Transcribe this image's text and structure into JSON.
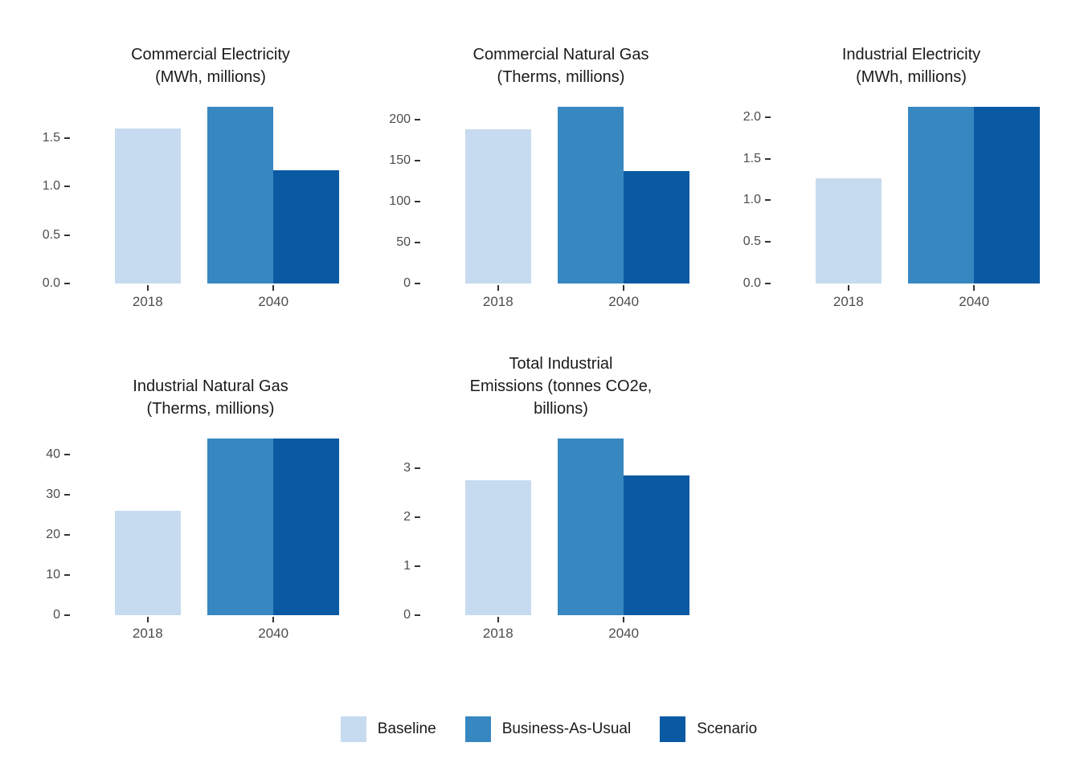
{
  "colors": {
    "baseline": "#c6dbef",
    "bau": "#3787c1",
    "scenario": "#0a5aa3",
    "axis_text": "#4d4d4d",
    "title_text": "#1a1a1a",
    "tick": "#333333"
  },
  "legend": {
    "items": [
      {
        "label": "Baseline",
        "color_key": "baseline"
      },
      {
        "label": "Business-As-Usual",
        "color_key": "bau"
      },
      {
        "label": "Scenario",
        "color_key": "scenario"
      }
    ]
  },
  "chart_data": [
    {
      "type": "bar",
      "title": "Commercial Electricity (MWh, millions)",
      "title_lines": [
        "Commercial Electricity",
        "(MWh, millions)"
      ],
      "categories": [
        "2018",
        "2040"
      ],
      "yticks": [
        0,
        0.5,
        1,
        1.5
      ],
      "ytick_labels": [
        "0.0",
        "0.5",
        "1.0",
        "1.5"
      ],
      "ylim": [
        0,
        1.91
      ],
      "series": [
        {
          "name": "Baseline",
          "color_key": "baseline",
          "values": [
            1.6,
            null
          ]
        },
        {
          "name": "Business-As-Usual",
          "color_key": "bau",
          "values": [
            null,
            1.82
          ]
        },
        {
          "name": "Scenario",
          "color_key": "scenario",
          "values": [
            null,
            1.17
          ]
        }
      ]
    },
    {
      "type": "bar",
      "title": "Commercial Natural Gas (Therms, millions)",
      "title_lines": [
        "Commercial Natural Gas",
        "(Therms, millions)"
      ],
      "categories": [
        "2018",
        "2040"
      ],
      "yticks": [
        0,
        50,
        100,
        150,
        200
      ],
      "ytick_labels": [
        "0",
        "50",
        "100",
        "150",
        "200"
      ],
      "ylim": [
        0,
        226
      ],
      "series": [
        {
          "name": "Baseline",
          "color_key": "baseline",
          "values": [
            188,
            null
          ]
        },
        {
          "name": "Business-As-Usual",
          "color_key": "bau",
          "values": [
            null,
            215
          ]
        },
        {
          "name": "Scenario",
          "color_key": "scenario",
          "values": [
            null,
            137
          ]
        }
      ]
    },
    {
      "type": "bar",
      "title": "Industrial Electricity (MWh, millions)",
      "title_lines": [
        "Industrial Electricity",
        "(MWh, millions)"
      ],
      "categories": [
        "2018",
        "2040"
      ],
      "yticks": [
        0,
        0.5,
        1,
        1.5,
        2
      ],
      "ytick_labels": [
        "0.0",
        "0.5",
        "1.0",
        "1.5",
        "2.0"
      ],
      "ylim": [
        0,
        2.23
      ],
      "series": [
        {
          "name": "Baseline",
          "color_key": "baseline",
          "values": [
            1.26,
            null
          ]
        },
        {
          "name": "Business-As-Usual",
          "color_key": "bau",
          "values": [
            null,
            2.12
          ]
        },
        {
          "name": "Scenario",
          "color_key": "scenario",
          "values": [
            null,
            2.12
          ]
        }
      ]
    },
    {
      "type": "bar",
      "title": "Industrial Natural Gas (Therms, millions)",
      "title_lines": [
        "Industrial Natural Gas",
        "(Therms, millions)"
      ],
      "categories": [
        "2018",
        "2040"
      ],
      "yticks": [
        0,
        10,
        20,
        30,
        40
      ],
      "ytick_labels": [
        "0",
        "10",
        "20",
        "30",
        "40"
      ],
      "ylim": [
        0,
        46.2
      ],
      "series": [
        {
          "name": "Baseline",
          "color_key": "baseline",
          "values": [
            26,
            null
          ]
        },
        {
          "name": "Business-As-Usual",
          "color_key": "bau",
          "values": [
            null,
            44
          ]
        },
        {
          "name": "Scenario",
          "color_key": "scenario",
          "values": [
            null,
            44
          ]
        }
      ]
    },
    {
      "type": "bar",
      "title": "Total Industrial Emissions (tonnes CO2e, billions)",
      "title_lines": [
        "Total Industrial",
        "Emissions (tonnes CO2e,",
        "billions)"
      ],
      "categories": [
        "2018",
        "2040"
      ],
      "yticks": [
        0,
        1,
        2,
        3
      ],
      "ytick_labels": [
        "0",
        "1",
        "2",
        "3"
      ],
      "ylim": [
        0,
        3.78
      ],
      "series": [
        {
          "name": "Baseline",
          "color_key": "baseline",
          "values": [
            2.75,
            null
          ]
        },
        {
          "name": "Business-As-Usual",
          "color_key": "bau",
          "values": [
            null,
            3.6
          ]
        },
        {
          "name": "Scenario",
          "color_key": "scenario",
          "values": [
            null,
            2.85
          ]
        }
      ]
    }
  ]
}
